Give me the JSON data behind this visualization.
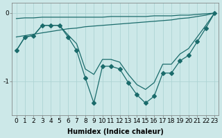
{
  "xlabel": "Humidex (Indice chaleur)",
  "ylabel": "",
  "background_color": "#cce8e8",
  "line_color": "#1a6b6b",
  "grid_color": "#add4d4",
  "ylim": [
    -1.5,
    0.15
  ],
  "xlim": [
    -0.5,
    23.5
  ],
  "yticks": [
    0,
    -1
  ],
  "ytick_labels": [
    "0",
    "-1"
  ],
  "xticks": [
    0,
    1,
    2,
    3,
    4,
    5,
    6,
    7,
    8,
    9,
    10,
    11,
    12,
    13,
    14,
    15,
    16,
    17,
    18,
    19,
    20,
    21,
    22,
    23
  ],
  "series": [
    {
      "x": [
        0,
        1,
        2,
        3,
        4,
        5,
        6,
        7,
        8,
        9,
        10,
        11,
        12,
        13,
        14,
        15,
        16,
        17,
        18,
        19,
        20,
        21,
        22,
        23
      ],
      "y": [
        -0.08,
        -0.07,
        -0.07,
        -0.06,
        -0.06,
        -0.06,
        -0.06,
        -0.06,
        -0.06,
        -0.06,
        -0.06,
        -0.05,
        -0.05,
        -0.05,
        -0.05,
        -0.05,
        -0.04,
        -0.04,
        -0.04,
        -0.03,
        -0.03,
        -0.02,
        -0.01,
        0.0
      ],
      "has_markers": false
    },
    {
      "x": [
        0,
        1,
        2,
        3,
        4,
        5,
        6,
        7,
        8,
        9,
        10,
        11,
        12,
        13,
        14,
        15,
        16,
        17,
        18,
        19,
        20,
        21,
        22,
        23
      ],
      "y": [
        -0.35,
        -0.33,
        -0.31,
        -0.29,
        -0.27,
        -0.25,
        -0.23,
        -0.22,
        -0.2,
        -0.19,
        -0.18,
        -0.17,
        -0.16,
        -0.15,
        -0.14,
        -0.13,
        -0.12,
        -0.11,
        -0.1,
        -0.08,
        -0.07,
        -0.05,
        -0.03,
        0.0
      ],
      "has_markers": false
    },
    {
      "x": [
        0,
        1,
        2,
        3,
        4,
        5,
        6,
        7,
        8,
        9,
        10,
        11,
        12,
        13,
        14,
        15,
        16,
        17,
        18,
        19,
        20,
        21,
        22,
        23
      ],
      "y": [
        -0.55,
        -0.35,
        -0.33,
        -0.18,
        -0.18,
        -0.18,
        -0.35,
        -0.55,
        -0.95,
        -1.32,
        -0.78,
        -0.78,
        -0.82,
        -1.02,
        -1.2,
        -1.32,
        -1.22,
        -0.88,
        -0.88,
        -0.7,
        -0.62,
        -0.42,
        -0.22,
        0.0
      ],
      "has_markers": true
    },
    {
      "x": [
        0,
        1,
        2,
        3,
        4,
        5,
        6,
        7,
        8,
        9,
        10,
        11,
        12,
        13,
        14,
        15,
        16,
        17,
        18,
        19,
        20,
        21,
        22,
        23
      ],
      "y": [
        -0.55,
        -0.35,
        -0.33,
        -0.18,
        -0.18,
        -0.18,
        -0.32,
        -0.45,
        -0.82,
        -0.9,
        -0.68,
        -0.68,
        -0.72,
        -0.9,
        -1.05,
        -1.12,
        -1.02,
        -0.75,
        -0.75,
        -0.6,
        -0.52,
        -0.35,
        -0.18,
        0.0
      ],
      "has_markers": false
    }
  ],
  "marker_size": 3,
  "line_width": 0.9,
  "font_size": 7,
  "tick_font_size": 6.5
}
